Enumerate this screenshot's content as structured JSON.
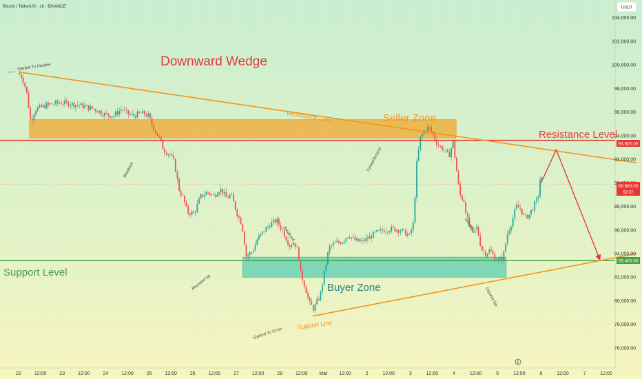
{
  "header": {
    "symbol": "Bitcoin / TetherUS · 1h · BINANCE",
    "currency": "USDT"
  },
  "chart_data": {
    "type": "line",
    "price_range": [
      74300,
      105500
    ],
    "y_ticks": [
      76000,
      78000,
      80000,
      82000,
      84000,
      86000,
      88000,
      90000,
      92000,
      94000,
      96000,
      98000,
      100000,
      102000,
      104000
    ],
    "y_tick_labels": [
      "76,000.00",
      "78,000.00",
      "80,000.00",
      "82,000.00",
      "84,000.00",
      "86,000.00",
      "88,000.00",
      "90,000.00",
      "92,000.00",
      "94,000.00",
      "96,000.00",
      "98,000.00",
      "100,000.00",
      "102,000.00",
      "104,000.00"
    ],
    "x_tick_labels": [
      "22",
      "12:00",
      "23",
      "12:00",
      "24",
      "12:00",
      "25",
      "12:00",
      "26",
      "12:00",
      "27",
      "12:00",
      "28",
      "12:00",
      "Mar",
      "12:00",
      "2",
      "12:00",
      "3",
      "12:00",
      "4",
      "12:00",
      "5",
      "12:00",
      "6",
      "12:00",
      "7",
      "12:00"
    ],
    "x_range": [
      0,
      28
    ],
    "price_series": [
      [
        0,
        99300
      ],
      [
        0.2,
        99000
      ],
      [
        0.4,
        97800
      ],
      [
        0.5,
        96500
      ],
      [
        0.6,
        95200
      ],
      [
        0.8,
        96200
      ],
      [
        1.2,
        96500
      ],
      [
        1.6,
        96700
      ],
      [
        2.0,
        96800
      ],
      [
        2.4,
        96700
      ],
      [
        2.8,
        96600
      ],
      [
        3.2,
        96400
      ],
      [
        3.6,
        96200
      ],
      [
        4.0,
        95800
      ],
      [
        4.4,
        95700
      ],
      [
        4.8,
        96300
      ],
      [
        5.0,
        95900
      ],
      [
        5.3,
        95700
      ],
      [
        5.7,
        95900
      ],
      [
        6.0,
        95700
      ],
      [
        6.2,
        94800
      ],
      [
        6.5,
        93800
      ],
      [
        6.7,
        92800
      ],
      [
        7.0,
        92400
      ],
      [
        7.2,
        91700
      ],
      [
        7.4,
        89500
      ],
      [
        7.6,
        88700
      ],
      [
        7.8,
        87500
      ],
      [
        8.1,
        87400
      ],
      [
        8.4,
        88800
      ],
      [
        8.7,
        89200
      ],
      [
        9.0,
        88900
      ],
      [
        9.3,
        89500
      ],
      [
        9.6,
        88700
      ],
      [
        9.8,
        89000
      ],
      [
        10.1,
        87300
      ],
      [
        10.3,
        86500
      ],
      [
        10.5,
        83800
      ],
      [
        10.8,
        84200
      ],
      [
        11.0,
        85200
      ],
      [
        11.3,
        85900
      ],
      [
        11.6,
        86500
      ],
      [
        11.9,
        86800
      ],
      [
        12.2,
        85800
      ],
      [
        12.5,
        84700
      ],
      [
        12.7,
        85000
      ],
      [
        12.9,
        84000
      ],
      [
        13.0,
        82300
      ],
      [
        13.2,
        81200
      ],
      [
        13.4,
        79800
      ],
      [
        13.6,
        79300
      ],
      [
        13.9,
        80500
      ],
      [
        14.1,
        82500
      ],
      [
        14.3,
        84500
      ],
      [
        14.6,
        84900
      ],
      [
        14.9,
        85000
      ],
      [
        15.2,
        85600
      ],
      [
        15.5,
        85100
      ],
      [
        15.8,
        85000
      ],
      [
        16.1,
        85300
      ],
      [
        16.4,
        85700
      ],
      [
        16.8,
        86000
      ],
      [
        17.2,
        86100
      ],
      [
        17.6,
        86000
      ],
      [
        18.0,
        85500
      ],
      [
        18.2,
        86700
      ],
      [
        18.3,
        91200
      ],
      [
        18.5,
        93800
      ],
      [
        18.7,
        94500
      ],
      [
        18.9,
        94700
      ],
      [
        19.1,
        94000
      ],
      [
        19.3,
        93200
      ],
      [
        19.6,
        92800
      ],
      [
        19.8,
        92200
      ],
      [
        20.0,
        93500
      ],
      [
        20.1,
        92000
      ],
      [
        20.3,
        89000
      ],
      [
        20.5,
        88500
      ],
      [
        20.7,
        86500
      ],
      [
        20.9,
        85800
      ],
      [
        21.1,
        86200
      ],
      [
        21.3,
        84400
      ],
      [
        21.5,
        84000
      ],
      [
        21.7,
        84300
      ],
      [
        21.9,
        83700
      ],
      [
        22.1,
        83400
      ],
      [
        22.3,
        83700
      ],
      [
        22.5,
        85700
      ],
      [
        22.7,
        86700
      ],
      [
        22.9,
        88000
      ],
      [
        23.1,
        87800
      ],
      [
        23.3,
        87000
      ],
      [
        23.5,
        87300
      ],
      [
        23.7,
        88000
      ],
      [
        23.9,
        88700
      ],
      [
        24.0,
        90300
      ]
    ],
    "projection": [
      [
        24.0,
        90000
      ],
      [
        24.7,
        92800
      ],
      [
        26.7,
        83500
      ]
    ],
    "resistance_line": {
      "from": [
        0,
        99400
      ],
      "to": [
        28.4,
        91700
      ]
    },
    "support_line": {
      "from": [
        13.5,
        78700
      ],
      "to": [
        28.4,
        84000
      ]
    },
    "resistance_level": 93600,
    "support_level": 83400,
    "current_price": 89863.05,
    "seller_zone": {
      "x": [
        0.5,
        20.1
      ],
      "y": [
        93800,
        95350
      ]
    },
    "buyer_zone": {
      "x": [
        10.3,
        22.4
      ],
      "y": [
        82000,
        83700
      ]
    },
    "price_labels": {
      "resistance": {
        "value": "93,600.00",
        "color": "#e53935"
      },
      "current": {
        "value": "89,863.05",
        "sub": "58:57",
        "color": "#e53935"
      },
      "support": {
        "value": "83,400.00",
        "color": "#43a047"
      }
    },
    "labels": {
      "downward_wedge": "Downward Wedge",
      "seller_zone": "Seller Zone",
      "buyer_zone": "Buyer Zone",
      "resistance_line": "Resistance Line",
      "support_line": "Support Line",
      "resistance_level": "Resistance Level",
      "support_level": "Support Level"
    },
    "annotations": [
      "Started To Decline",
      "Breakout",
      "Bounced Up",
      "Breakout",
      "Started To Grow",
      "Turned Around",
      "Breakout",
      "Impulse Up"
    ],
    "colors": {
      "candles_up": "#26a69a",
      "candles_down": "#ef5350",
      "orange": "#f7931a",
      "red": "#e53935",
      "green": "#43a047",
      "title_red": "#e53935",
      "buyer_text": "#2e7d83",
      "seller_zone_fill": "#f0a830",
      "buyer_zone_fill": "#5ccfb0"
    }
  }
}
